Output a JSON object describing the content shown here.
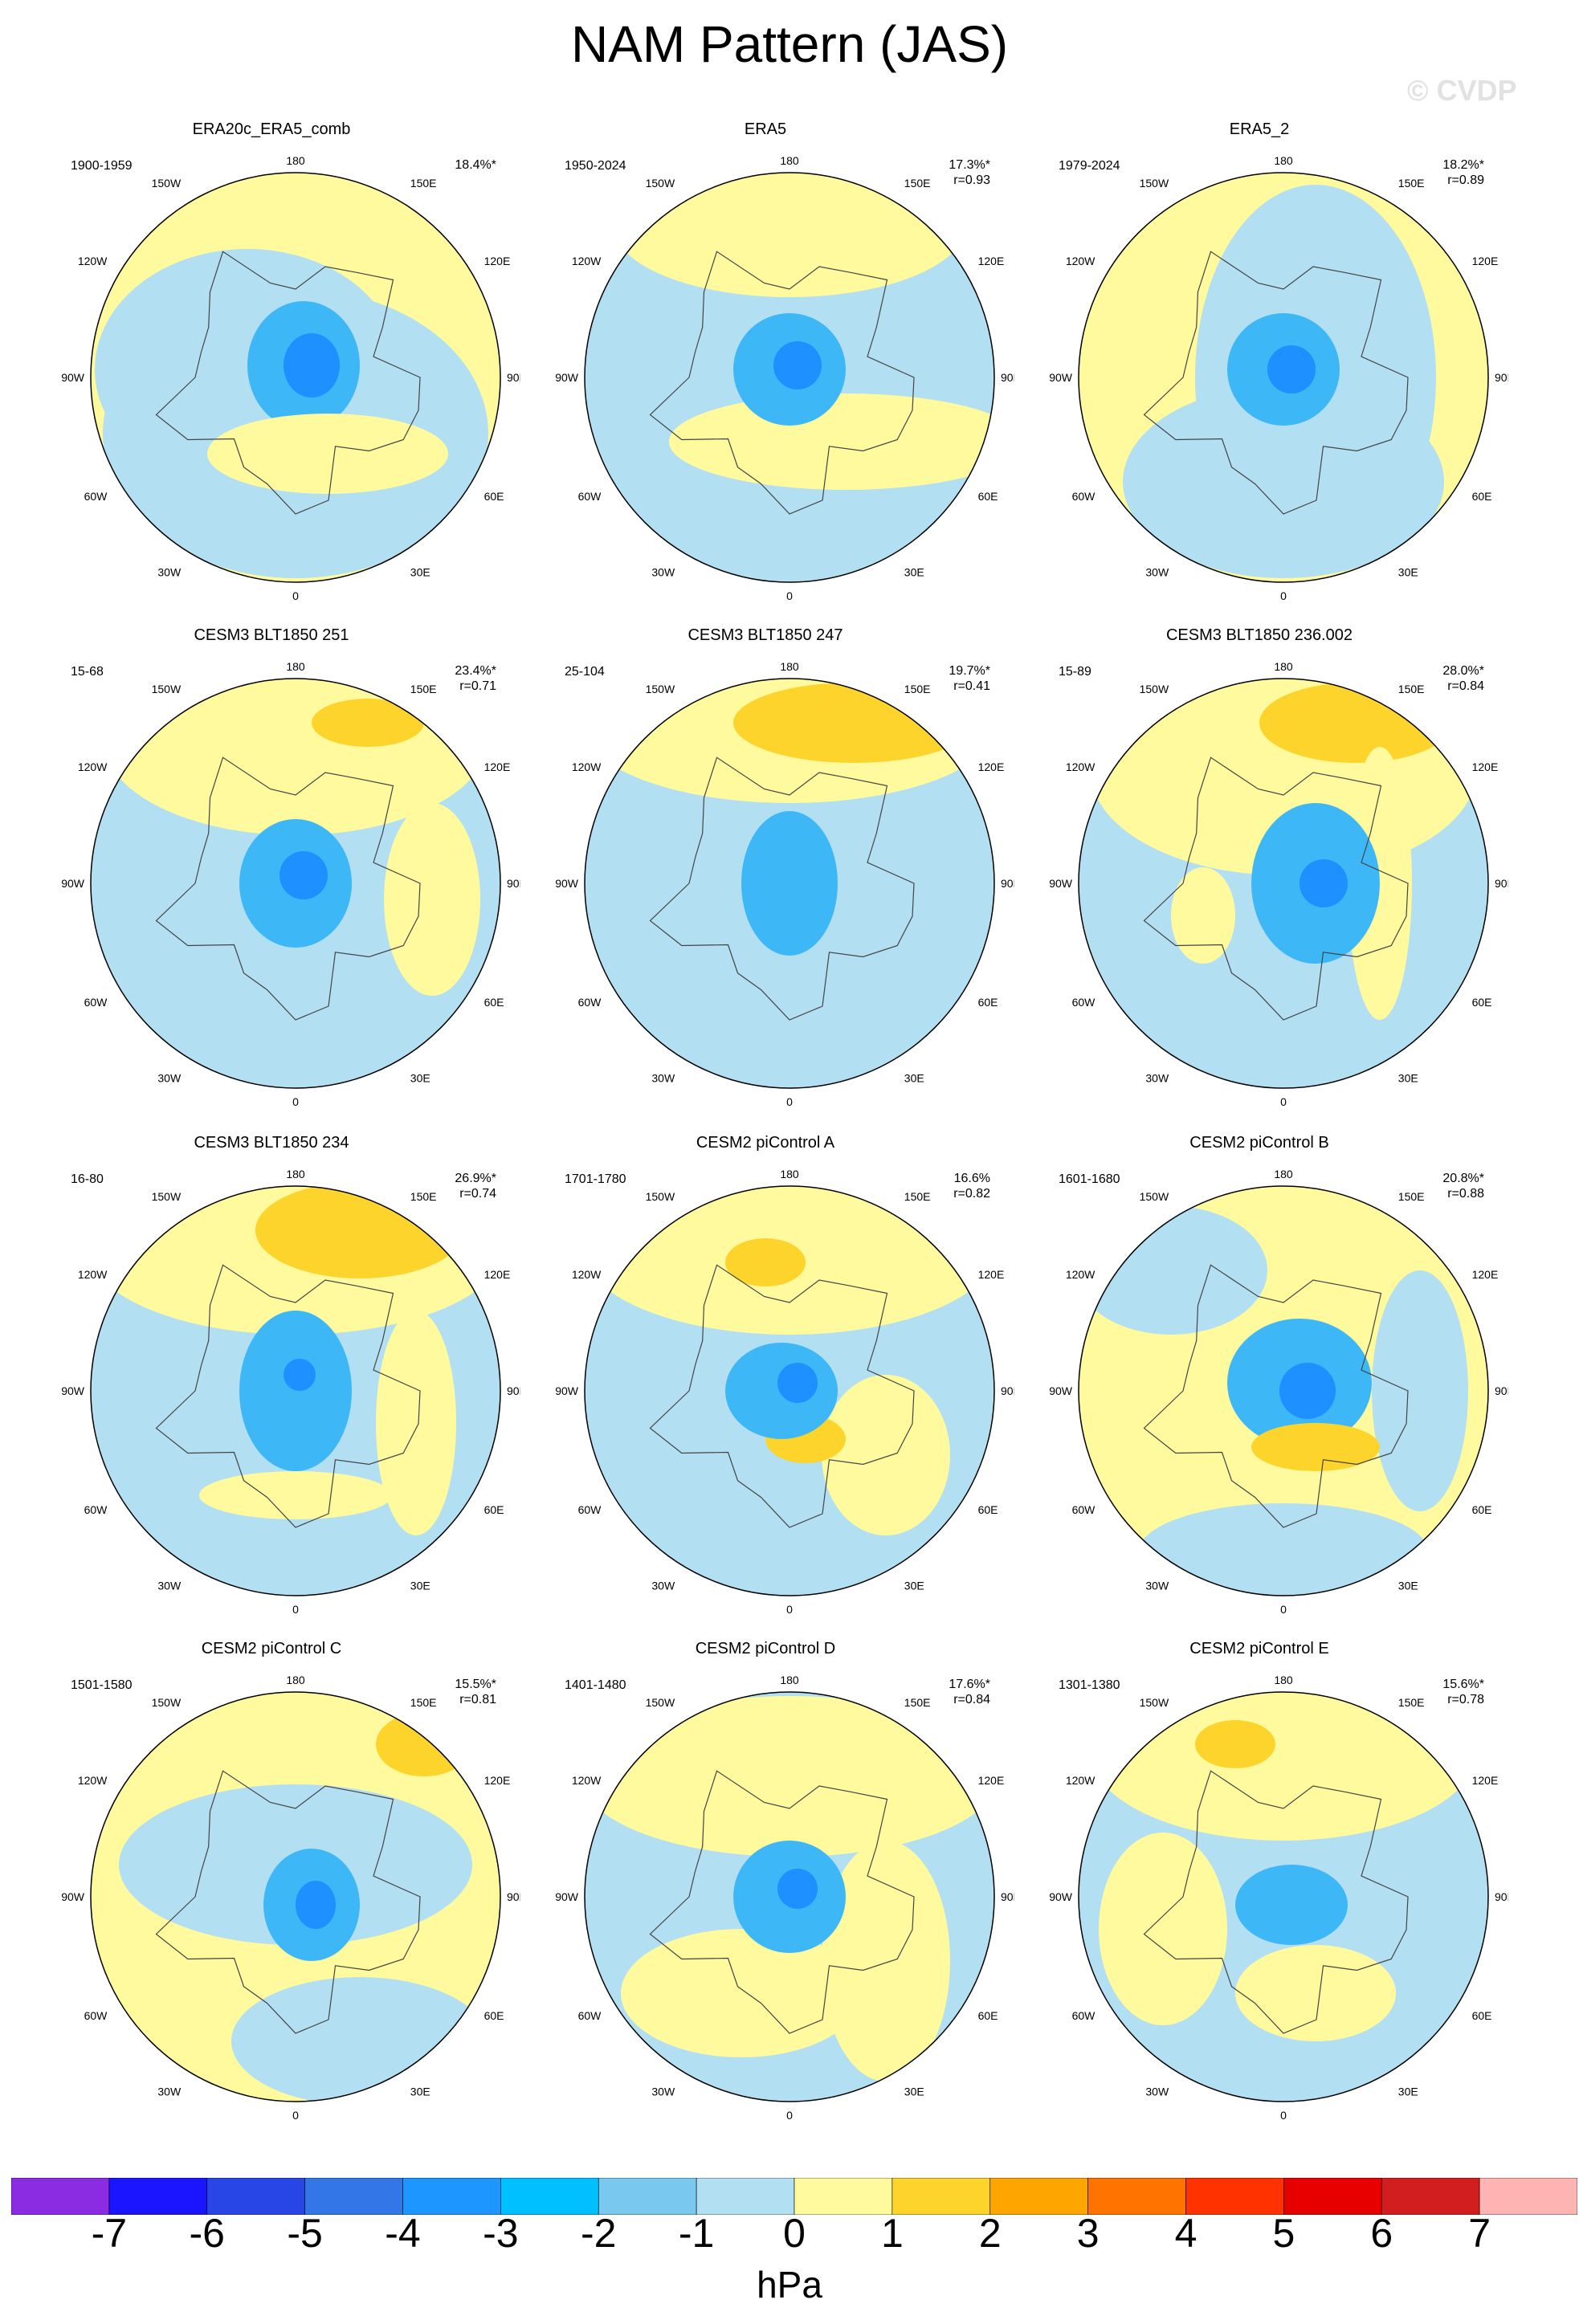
{
  "title": "NAM Pattern (JAS)",
  "watermark": "© CVDP",
  "colors": {
    "neg_strong": "#1e90ff",
    "neg_mid": "#3db7f5",
    "neg_light": "#78c8f0",
    "neg_weak": "#b3dff2",
    "pos_weak": "#fffa9e",
    "pos_mid": "#fdd42c",
    "land_outline": "#444444"
  },
  "longitude_labels": {
    "top": "180",
    "bottom": "0",
    "left": "90W",
    "right": "90E",
    "upper_left_1": "150W",
    "upper_left_2": "120W",
    "upper_right_1": "150E",
    "upper_right_2": "120E",
    "lower_left_1": "60W",
    "lower_left_2": "30W",
    "lower_right_1": "60E",
    "lower_right_2": "30E"
  },
  "panels": [
    {
      "title": "ERA20c_ERA5_comb",
      "period": "1900-1959",
      "variance": "18.4%*",
      "corr": ""
    },
    {
      "title": "ERA5",
      "period": "1950-2024",
      "variance": "17.3%*",
      "corr": "r=0.93"
    },
    {
      "title": "ERA5_2",
      "period": "1979-2024",
      "variance": "18.2%*",
      "corr": "r=0.89"
    },
    {
      "title": "CESM3 BLT1850 251",
      "period": "15-68",
      "variance": "23.4%*",
      "corr": "r=0.71"
    },
    {
      "title": "CESM3 BLT1850 247",
      "period": "25-104",
      "variance": "19.7%*",
      "corr": "r=0.41"
    },
    {
      "title": "CESM3 BLT1850 236.002",
      "period": "15-89",
      "variance": "28.0%*",
      "corr": "r=0.84"
    },
    {
      "title": "CESM3 BLT1850 234",
      "period": "16-80",
      "variance": "26.9%*",
      "corr": "r=0.74"
    },
    {
      "title": "CESM2 piControl A",
      "period": "1701-1780",
      "variance": "16.6%",
      "corr": "r=0.82"
    },
    {
      "title": "CESM2 piControl B",
      "period": "1601-1680",
      "variance": "20.8%*",
      "corr": "r=0.88"
    },
    {
      "title": "CESM2 piControl C",
      "period": "1501-1580",
      "variance": "15.5%*",
      "corr": "r=0.81"
    },
    {
      "title": "CESM2 piControl D",
      "period": "1401-1480",
      "variance": "17.6%*",
      "corr": "r=0.84"
    },
    {
      "title": "CESM2 piControl E",
      "period": "1301-1380",
      "variance": "15.6%*",
      "corr": "r=0.78"
    }
  ],
  "colorbar": {
    "units": "hPa",
    "tick_labels": [
      "-7",
      "-6",
      "-5",
      "-4",
      "-3",
      "-2",
      "-1",
      "0",
      "1",
      "2",
      "3",
      "4",
      "5",
      "6",
      "7"
    ],
    "colors": [
      "#8b2be2",
      "#1a14ff",
      "#2846e6",
      "#3276e8",
      "#1e96ff",
      "#00c0ff",
      "#78c8f0",
      "#b3dff2",
      "#fffa9e",
      "#fdd42c",
      "#ffa500",
      "#ff7300",
      "#ff3200",
      "#e60000",
      "#d21e1e",
      "#ffb4b4"
    ]
  }
}
